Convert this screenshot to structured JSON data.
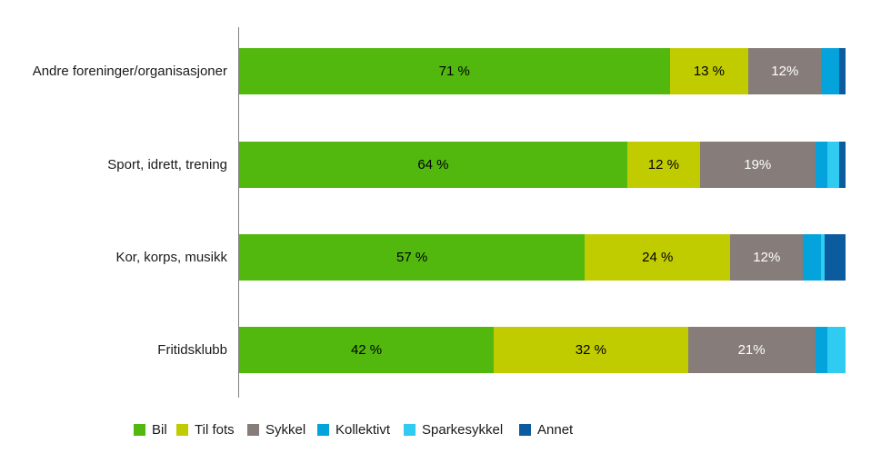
{
  "chart_data": {
    "type": "bar",
    "orientation": "horizontal",
    "stacked": true,
    "unit": "%",
    "xlim": [
      0,
      100
    ],
    "grid": false,
    "legend_position": "bottom",
    "title": "",
    "categories": [
      "Andre foreninger/organisasjoner",
      "Sport, idrett, trening",
      "Kor, korps, musikk",
      "Fritidsklubb"
    ],
    "series": [
      {
        "name": "Bil",
        "color": "#53B80E",
        "label_color": "#000000",
        "values": [
          71,
          64,
          57,
          42
        ],
        "labels": [
          "71 %",
          "64 %",
          "57 %",
          "42 %"
        ]
      },
      {
        "name": "Til fots",
        "color": "#C1CC00",
        "label_color": "#000000",
        "values": [
          13,
          12,
          24,
          32
        ],
        "labels": [
          "13 %",
          "12 %",
          "24 %",
          "32 %"
        ]
      },
      {
        "name": "Sykkel",
        "color": "#867C79",
        "label_color": "#FFFFFF",
        "values": [
          12,
          19,
          12,
          21
        ],
        "labels": [
          "12%",
          "19%",
          "12%",
          "21%"
        ]
      },
      {
        "name": "Kollektivt",
        "color": "#05A3DB",
        "label_color": "#FFFFFF",
        "values": [
          3,
          2,
          3,
          2
        ],
        "labels": [
          "",
          "",
          "",
          ""
        ]
      },
      {
        "name": "Sparkesykkel",
        "color": "#2FCBF0",
        "label_color": "#FFFFFF",
        "values": [
          0,
          2,
          0.5,
          3
        ],
        "labels": [
          "",
          "",
          "",
          ""
        ]
      },
      {
        "name": "Annet",
        "color": "#0A5C9E",
        "label_color": "#FFFFFF",
        "values": [
          1,
          1,
          3.5,
          0
        ],
        "labels": [
          "",
          "",
          "",
          ""
        ]
      }
    ]
  }
}
